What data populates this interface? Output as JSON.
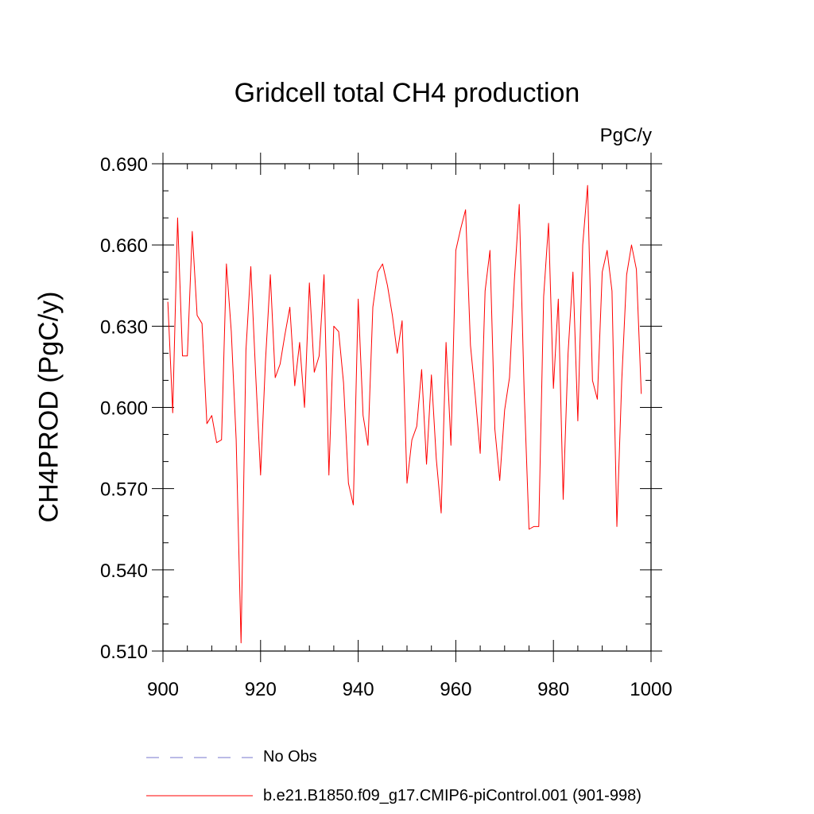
{
  "chart_data": {
    "type": "line",
    "title": "Gridcell total CH4 production",
    "units": "PgC/y",
    "ylabel": "CH4PROD  (PgC/y)",
    "xlabel": "",
    "xlim": [
      900,
      1000
    ],
    "ylim": [
      0.51,
      0.69
    ],
    "xticks": [
      900,
      920,
      940,
      960,
      980,
      1000
    ],
    "xtick_labels": [
      "900",
      "920",
      "940",
      "960",
      "980",
      "1000"
    ],
    "yticks": [
      0.51,
      0.54,
      0.57,
      0.6,
      0.63,
      0.66,
      0.69
    ],
    "ytick_labels": [
      "0.510",
      "0.540",
      "0.570",
      "0.600",
      "0.630",
      "0.660",
      "0.690"
    ],
    "grid": false,
    "legend_position": "bottom",
    "series": [
      {
        "name": "No Obs",
        "color": "#7777cc",
        "dash": true,
        "x": [],
        "values": []
      },
      {
        "name": "b.e21.B1850.f09_g17.CMIP6-piControl.001 (901-998)",
        "color": "#ff0000",
        "dash": false,
        "x": [
          901,
          902,
          903,
          904,
          905,
          906,
          907,
          908,
          909,
          910,
          911,
          912,
          913,
          914,
          915,
          916,
          917,
          918,
          919,
          920,
          921,
          922,
          923,
          924,
          925,
          926,
          927,
          928,
          929,
          930,
          931,
          932,
          933,
          934,
          935,
          936,
          937,
          938,
          939,
          940,
          941,
          942,
          943,
          944,
          945,
          946,
          947,
          948,
          949,
          950,
          951,
          952,
          953,
          954,
          955,
          956,
          957,
          958,
          959,
          960,
          961,
          962,
          963,
          964,
          965,
          966,
          967,
          968,
          969,
          970,
          971,
          972,
          973,
          974,
          975,
          976,
          977,
          978,
          979,
          980,
          981,
          982,
          983,
          984,
          985,
          986,
          987,
          988,
          989,
          990,
          991,
          992,
          993,
          994,
          995,
          996,
          997,
          998
        ],
        "values": [
          0.639,
          0.598,
          0.67,
          0.619,
          0.619,
          0.665,
          0.634,
          0.631,
          0.594,
          0.597,
          0.587,
          0.588,
          0.653,
          0.628,
          0.588,
          0.513,
          0.621,
          0.652,
          0.612,
          0.575,
          0.617,
          0.649,
          0.611,
          0.616,
          0.627,
          0.637,
          0.608,
          0.624,
          0.6,
          0.646,
          0.613,
          0.619,
          0.649,
          0.575,
          0.63,
          0.628,
          0.609,
          0.572,
          0.564,
          0.64,
          0.597,
          0.586,
          0.637,
          0.65,
          0.653,
          0.645,
          0.634,
          0.62,
          0.632,
          0.572,
          0.588,
          0.593,
          0.614,
          0.579,
          0.612,
          0.581,
          0.561,
          0.624,
          0.586,
          0.658,
          0.666,
          0.673,
          0.623,
          0.604,
          0.583,
          0.643,
          0.658,
          0.592,
          0.573,
          0.599,
          0.611,
          0.647,
          0.675,
          0.606,
          0.555,
          0.556,
          0.556,
          0.641,
          0.668,
          0.607,
          0.64,
          0.566,
          0.62,
          0.65,
          0.595,
          0.66,
          0.682,
          0.61,
          0.603,
          0.65,
          0.658,
          0.643,
          0.556,
          0.61,
          0.649,
          0.66,
          0.651,
          0.605
        ]
      }
    ]
  }
}
